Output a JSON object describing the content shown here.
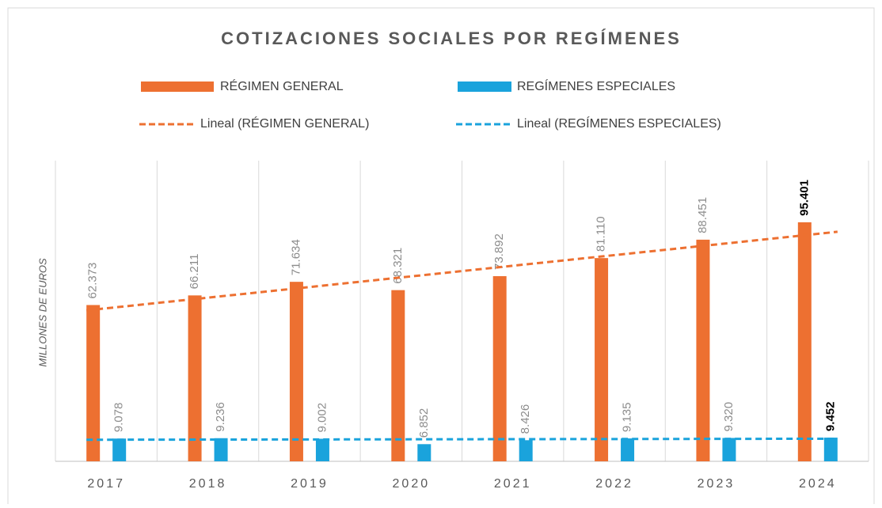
{
  "chart_data": {
    "type": "bar",
    "title": "COTIZACIONES SOCIALES POR REGÍMENES",
    "y_label": "MILLONES DE EUROS",
    "categories": [
      "2017",
      "2018",
      "2019",
      "2020",
      "2021",
      "2022",
      "2023",
      "2024"
    ],
    "series": [
      {
        "name": "RÉGIMEN GENERAL",
        "color": "#ed7031",
        "values": [
          62373,
          66211,
          71634,
          68321,
          73892,
          81110,
          88451,
          95401
        ],
        "value_labels": [
          "62.373",
          "66.211",
          "71.634",
          "68.321",
          "73.892",
          "81.110",
          "88.451",
          "95.401"
        ],
        "trendline": "Lineal (RÉGIMEN GENERAL)"
      },
      {
        "name": "REGÍMENES ESPECIALES",
        "color": "#1aa3dc",
        "values": [
          9078,
          9236,
          9002,
          6852,
          8426,
          9135,
          9320,
          9452
        ],
        "value_labels": [
          "9.078",
          "9.236",
          "9.002",
          "6.852",
          "8.426",
          "9.135",
          "9.320",
          "9.452"
        ],
        "trendline": "Lineal (REGÍMENES ESPECIALES)"
      }
    ],
    "ylim": [
      0,
      120000
    ],
    "bold_last_label": true,
    "grid": true
  }
}
